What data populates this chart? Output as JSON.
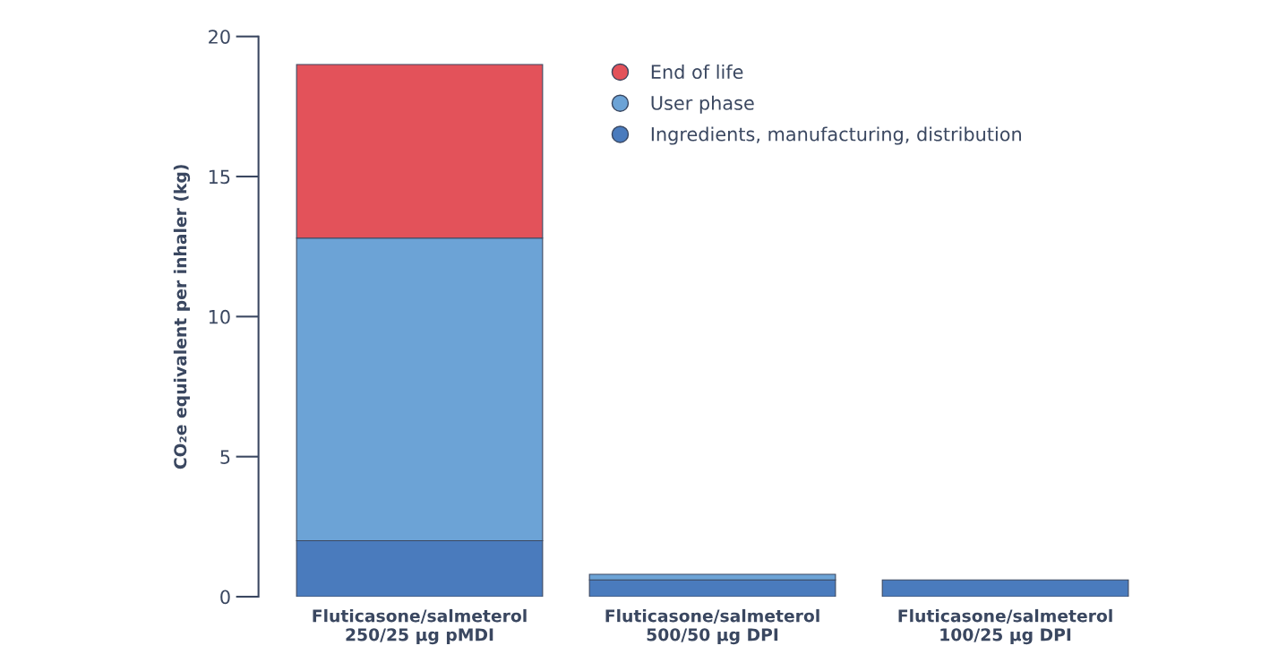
{
  "chart_data": {
    "type": "bar",
    "stacked": true,
    "ylabel": "CO₂e equivalent per inhaler (kg)",
    "categories": [
      "Fluticasone/salmeterol\n250/25 µg pMDI",
      "Fluticasone/salmeterol\n500/50 µg DPI",
      "Fluticasone/salmeterol\n100/25 µg DPI"
    ],
    "series": [
      {
        "name": "Ingredients, manufacturing, distribution",
        "color": "#4a7bbd",
        "values": [
          2.0,
          0.6,
          0.6
        ]
      },
      {
        "name": "User phase",
        "color": "#6ca3d6",
        "values": [
          10.8,
          0.2,
          null
        ]
      },
      {
        "name": "End of life",
        "color": "#e3525a",
        "values": [
          6.2,
          null,
          null
        ]
      }
    ],
    "ylim": [
      0,
      20
    ],
    "yticks": [
      0,
      5,
      10,
      15,
      20
    ],
    "grid": false,
    "legend": "top right"
  }
}
